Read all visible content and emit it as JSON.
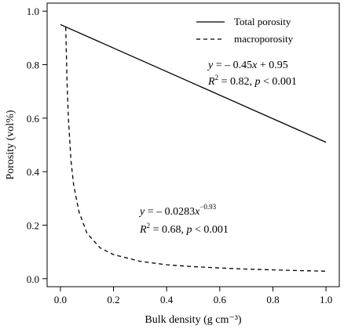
{
  "chart_data": {
    "type": "line",
    "xlabel": "Bulk density (g cm⁻³)",
    "ylabel": "Porosity (vol%)",
    "xlim": [
      -0.05,
      1.05
    ],
    "ylim": [
      -0.03,
      1.03
    ],
    "x_ticks": [
      "0.0",
      "0.2",
      "0.4",
      "0.6",
      "0.8",
      "1.0"
    ],
    "y_ticks": [
      "0.0",
      "0.2",
      "0.4",
      "0.6",
      "0.8",
      "1.0"
    ],
    "grid": false,
    "legend_position": "top-right",
    "series": [
      {
        "name": "Total porosity",
        "style": "solid",
        "points": [
          [
            0.0,
            0.95
          ],
          [
            1.0,
            0.51
          ]
        ]
      },
      {
        "name": "macroporosity",
        "style": "dashed",
        "points": [
          [
            0.02,
            0.94
          ],
          [
            0.025,
            0.73
          ],
          [
            0.03,
            0.6
          ],
          [
            0.04,
            0.44
          ],
          [
            0.05,
            0.35
          ],
          [
            0.07,
            0.25
          ],
          [
            0.1,
            0.17
          ],
          [
            0.15,
            0.115
          ],
          [
            0.2,
            0.09
          ],
          [
            0.3,
            0.065
          ],
          [
            0.4,
            0.052
          ],
          [
            0.5,
            0.045
          ],
          [
            0.6,
            0.04
          ],
          [
            0.7,
            0.036
          ],
          [
            0.8,
            0.033
          ],
          [
            0.9,
            0.03
          ],
          [
            1.0,
            0.028
          ]
        ]
      }
    ],
    "annotations": [
      {
        "name": "total-equation",
        "line1": {
          "y": "y",
          "eq": " = – 0.45",
          "x": "x",
          "rest": " + 0.95"
        },
        "line2": {
          "r": "R",
          "sup": "2",
          "rest1": " = 0.82, ",
          "p": "p",
          "rest2": " < 0.001"
        }
      },
      {
        "name": "macro-equation",
        "line1": {
          "y": "y",
          "eq": " = – 0.0283",
          "x": "x",
          "sup": "−0.93"
        },
        "line2": {
          "r": "R",
          "sup": "2",
          "rest1": " = 0.68, ",
          "p": "p",
          "rest2": " < 0.001"
        }
      }
    ]
  }
}
